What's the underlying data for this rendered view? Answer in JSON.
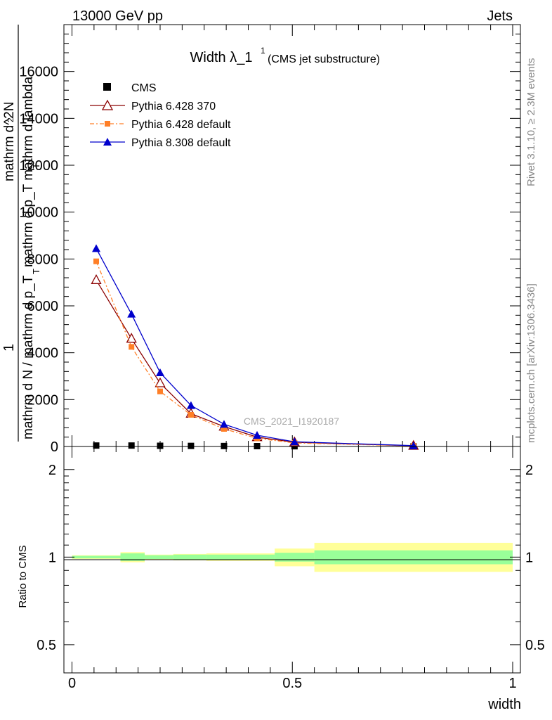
{
  "header": {
    "left": "13000 GeV pp",
    "right": "Jets"
  },
  "side_labels": {
    "rivet": "Rivet 3.1.10, ≥ 2.3M events",
    "mcplots": "mcplots.cern.ch [arXiv:1306.3436]"
  },
  "colors": {
    "cms": "#000000",
    "pythia6_370": "#8b0000",
    "pythia6_default": "#ff7f27",
    "pythia8_default": "#0000cc",
    "band_inner": "#99ff99",
    "band_outer": "#ffff99"
  },
  "chart_data": [
    {
      "type": "line",
      "title": "Width λ_1",
      "title_sup": "1",
      "subtitle": "(CMS jet substructure)",
      "watermark": "CMS_2021_I1920187",
      "ylabel_top": "1",
      "ylabel_frac_den": "mathrm d N / mathrm d p_T",
      "ylabel_frac_den_sub": "T",
      "ylabel_num": "mathrm d^2N",
      "ylabel_num_sup": "2",
      "ylabel_den": "mathrm d p_T mathrm d lambda",
      "ylabel_den_sub": "T",
      "xlim": [
        0,
        1
      ],
      "ylim": [
        0,
        18000
      ],
      "yticks": [
        0,
        2000,
        4000,
        6000,
        8000,
        10000,
        12000,
        14000,
        16000
      ],
      "yticklabels": [
        "0",
        "2000",
        "4000",
        "6000",
        "8000",
        "10000",
        "12000",
        "14000",
        "16000"
      ],
      "legend_position": "top-left",
      "series": [
        {
          "name": "CMS",
          "x": [
            0.055,
            0.135,
            0.2,
            0.27,
            0.345,
            0.42,
            0.505,
            0.775
          ],
          "y": [
            40,
            40,
            30,
            25,
            20,
            15,
            10,
            5
          ]
        },
        {
          "name": "Pythia 6.428 370",
          "x": [
            0.055,
            0.135,
            0.2,
            0.27,
            0.345,
            0.42,
            0.505,
            0.775
          ],
          "y": [
            7100,
            4600,
            2700,
            1400,
            850,
            400,
            180,
            30
          ]
        },
        {
          "name": "Pythia 6.428 default",
          "x": [
            0.055,
            0.135,
            0.2,
            0.27,
            0.345,
            0.42,
            0.505,
            0.775
          ],
          "y": [
            7900,
            4250,
            2350,
            1350,
            750,
            350,
            150,
            25
          ]
        },
        {
          "name": "Pythia 8.308 default",
          "x": [
            0.055,
            0.135,
            0.2,
            0.27,
            0.345,
            0.42,
            0.505,
            0.775
          ],
          "y": [
            8450,
            5650,
            3150,
            1750,
            950,
            480,
            200,
            35
          ]
        }
      ]
    },
    {
      "type": "area",
      "ylabel": "Ratio to CMS",
      "xlabel": "width",
      "xlim": [
        0,
        1
      ],
      "ylim": [
        0.4,
        2.4
      ],
      "log_scale_y": true,
      "yticks": [
        0.5,
        1,
        2
      ],
      "yticklabels": [
        "0.5",
        "1",
        "2"
      ],
      "xticks": [
        0,
        0.5,
        1
      ],
      "xticklabels": [
        "0",
        "0.5",
        "1"
      ],
      "bins": [
        {
          "lo": 0.0,
          "hi": 0.11,
          "inner": [
            0.99,
            1.01
          ],
          "outer": [
            0.985,
            1.015
          ]
        },
        {
          "lo": 0.11,
          "hi": 0.165,
          "inner": [
            0.97,
            1.03
          ],
          "outer": [
            0.96,
            1.04
          ]
        },
        {
          "lo": 0.165,
          "hi": 0.23,
          "inner": [
            0.985,
            1.015
          ],
          "outer": [
            0.98,
            1.02
          ]
        },
        {
          "lo": 0.23,
          "hi": 0.305,
          "inner": [
            0.98,
            1.02
          ],
          "outer": [
            0.975,
            1.025
          ]
        },
        {
          "lo": 0.305,
          "hi": 0.46,
          "inner": [
            0.98,
            1.02
          ],
          "outer": [
            0.97,
            1.03
          ]
        },
        {
          "lo": 0.46,
          "hi": 0.55,
          "inner": [
            0.965,
            1.035
          ],
          "outer": [
            0.93,
            1.07
          ]
        },
        {
          "lo": 0.55,
          "hi": 1.0,
          "inner": [
            0.945,
            1.055
          ],
          "outer": [
            0.89,
            1.12
          ]
        }
      ]
    }
  ]
}
